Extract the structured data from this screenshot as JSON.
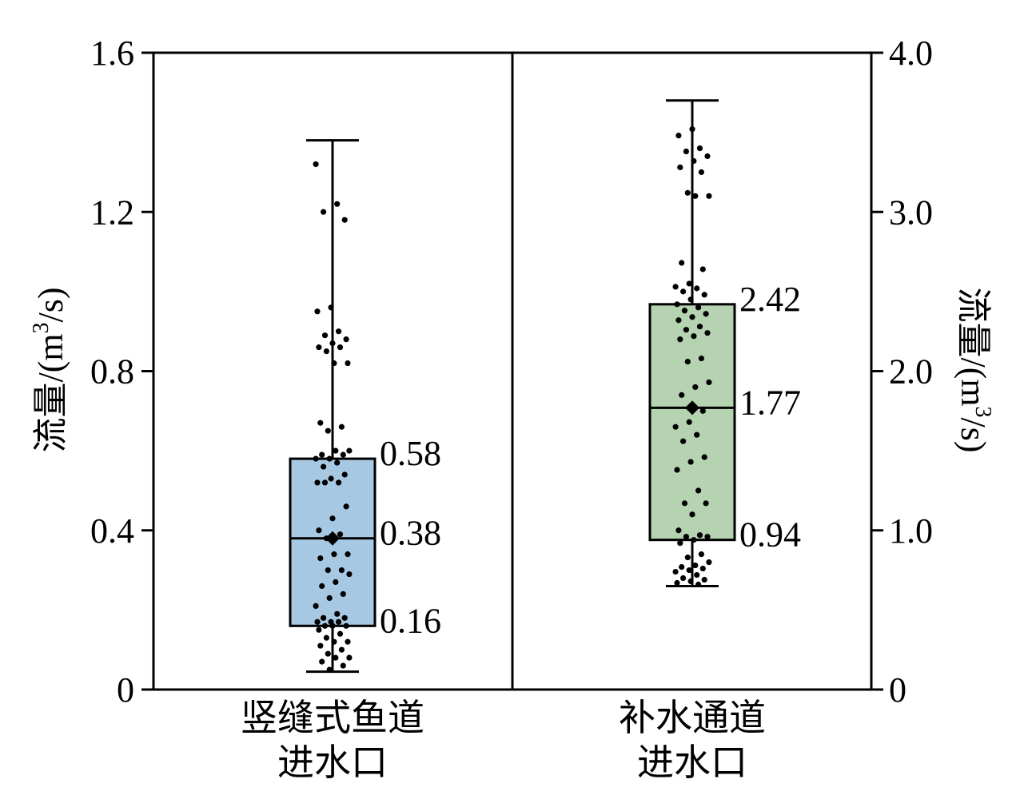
{
  "chart_data": {
    "type": "box",
    "grid": false,
    "y_axis_left": {
      "label_text": "流量/(m",
      "label_sup": "3",
      "label_tail": "/s)",
      "range": [
        0,
        1.6
      ],
      "ticks": [
        0,
        0.4,
        0.8,
        1.2,
        1.6
      ],
      "tick_labels": [
        "0",
        "0.4",
        "0.8",
        "1.2",
        "1.6"
      ]
    },
    "y_axis_right": {
      "label_text": "流量/(m",
      "label_sup": "3",
      "label_tail": "/s)",
      "range": [
        0,
        4.0
      ],
      "ticks": [
        0,
        1.0,
        2.0,
        3.0,
        4.0
      ],
      "tick_labels": [
        "0",
        "1.0",
        "2.0",
        "3.0",
        "4.0"
      ]
    },
    "groups": [
      {
        "label_lines": [
          "竖缝式鱼道",
          "进水口"
        ],
        "axis": "left",
        "color": "#a7c8e3",
        "whisker_low": 0.045,
        "q1": 0.16,
        "median": 0.38,
        "q3": 0.58,
        "whisker_high": 1.38,
        "mean": 0.38,
        "q1_label": "0.16",
        "median_label": "0.38",
        "q3_label": "0.58",
        "points": [
          1.32,
          1.22,
          1.2,
          1.18,
          0.96,
          0.95,
          0.9,
          0.89,
          0.88,
          0.87,
          0.86,
          0.86,
          0.85,
          0.82,
          0.82,
          0.67,
          0.66,
          0.65,
          0.6,
          0.6,
          0.59,
          0.59,
          0.58,
          0.58,
          0.57,
          0.56,
          0.54,
          0.53,
          0.52,
          0.52,
          0.52,
          0.46,
          0.43,
          0.4,
          0.39,
          0.38,
          0.34,
          0.34,
          0.33,
          0.3,
          0.3,
          0.29,
          0.27,
          0.26,
          0.24,
          0.23,
          0.21,
          0.19,
          0.18,
          0.18,
          0.17,
          0.17,
          0.17,
          0.16,
          0.16,
          0.16,
          0.15,
          0.14,
          0.13,
          0.12,
          0.12,
          0.11,
          0.1,
          0.09,
          0.08,
          0.08,
          0.07,
          0.06,
          0.05
        ]
      },
      {
        "label_lines": [
          "补水通道",
          "进水口"
        ],
        "axis": "right",
        "color": "#b5d3b0",
        "whisker_low": 0.65,
        "q1": 0.94,
        "median": 1.77,
        "q3": 2.42,
        "whisker_high": 3.7,
        "mean": 1.77,
        "q1_label": "0.94",
        "median_label": "1.77",
        "q3_label": "2.42",
        "points": [
          3.52,
          3.48,
          3.4,
          3.38,
          3.35,
          3.32,
          3.28,
          3.25,
          3.12,
          3.1,
          3.1,
          2.68,
          2.64,
          2.55,
          2.53,
          2.52,
          2.5,
          2.48,
          2.45,
          2.42,
          2.4,
          2.38,
          2.36,
          2.34,
          2.32,
          2.28,
          2.26,
          2.24,
          2.22,
          2.2,
          2.08,
          2.06,
          1.93,
          1.9,
          1.85,
          1.75,
          1.68,
          1.65,
          1.6,
          1.56,
          1.46,
          1.43,
          1.38,
          1.25,
          1.17,
          1.17,
          1.1,
          1.0,
          0.97,
          0.96,
          0.96,
          0.94,
          0.92,
          0.85,
          0.83,
          0.8,
          0.78,
          0.77,
          0.76,
          0.75,
          0.74,
          0.72,
          0.7,
          0.69,
          0.68,
          0.67,
          0.66
        ]
      }
    ]
  }
}
